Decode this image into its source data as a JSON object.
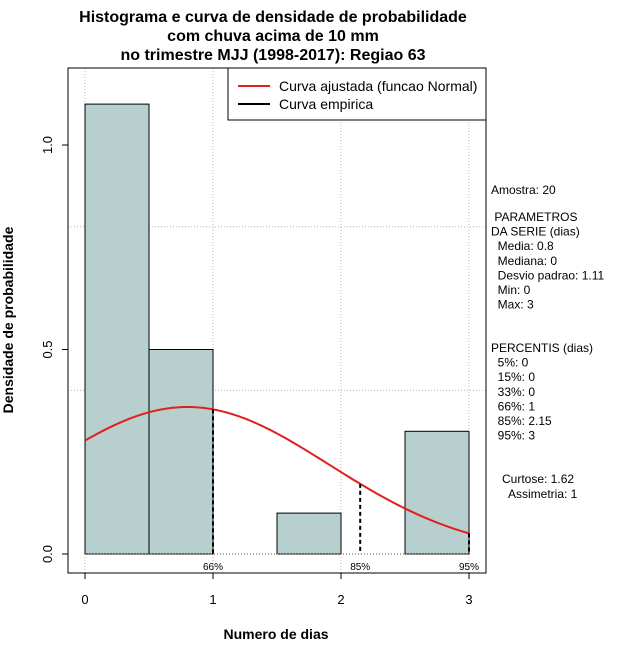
{
  "chart_data": {
    "type": "bar",
    "title_lines": [
      "Histograma e curva de densidade de probabilidade",
      "com chuva acima de 10 mm",
      "no trimestre MJJ (1998-2017): Regiao 63"
    ],
    "xlabel": "Numero de dias",
    "ylabel": "Densidade de probabilidade",
    "xlim": [
      -0.125,
      3.125
    ],
    "ylim": [
      0,
      1.17
    ],
    "xticks": [
      0,
      1,
      2,
      3
    ],
    "yticks": [
      0.0,
      0.5,
      1.0
    ],
    "x_tick_labels": [
      "0",
      "1",
      "2",
      "3"
    ],
    "y_tick_labels": [
      "0.0",
      "0.5",
      "1.0"
    ],
    "grid": true,
    "bins": [
      {
        "from": 0.0,
        "to": 0.5,
        "density": 1.1
      },
      {
        "from": 0.5,
        "to": 1.0,
        "density": 0.5
      },
      {
        "from": 1.0,
        "to": 1.5,
        "density": 0.0
      },
      {
        "from": 1.5,
        "to": 2.0,
        "density": 0.1
      },
      {
        "from": 2.0,
        "to": 2.5,
        "density": 0.0
      },
      {
        "from": 2.5,
        "to": 3.0,
        "density": 0.3
      }
    ],
    "bar_color": "#b7cfcf",
    "normal_fit": {
      "mean": 0.8,
      "sd": 1.11,
      "x_range": [
        0,
        3
      ],
      "color": "#e0201a"
    },
    "percentile_lines": [
      {
        "x": 1,
        "label": "66%"
      },
      {
        "x": 2.15,
        "label": "85%"
      },
      {
        "x": 3,
        "label": "95%"
      }
    ],
    "legend": {
      "position": "top-right",
      "entries": [
        {
          "label": "Curva ajustada (funcao Normal)",
          "color": "#e0201a"
        },
        {
          "label": "Curva empirica",
          "color": "#000000"
        }
      ]
    }
  },
  "stats": {
    "amostra": "Amostra: 20",
    "params_lines": [
      " PARAMETROS",
      "DA SERIE (dias)",
      "  Media: 0.8",
      "  Mediana: 0",
      "  Desvio padrao: 1.11",
      "  Min: 0",
      "  Max: 3"
    ],
    "percentis_lines": [
      "PERCENTIS (dias)",
      "  5%: 0",
      "  15%: 0",
      "  33%: 0",
      "  66%: 1",
      "  85%: 2.15",
      "  95%: 3"
    ],
    "shape_lines": [
      "Curtose: 1.62",
      "  Assimetria: 1"
    ]
  }
}
